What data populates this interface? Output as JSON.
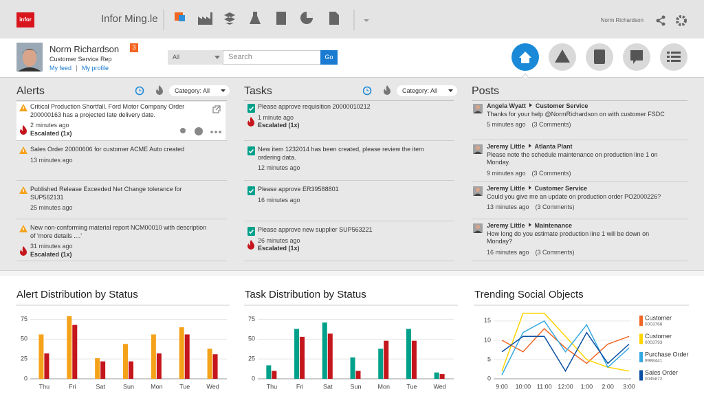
{
  "topbar": {
    "logo": "infor",
    "app": "Infor Ming.le",
    "user": "Norm Richardson"
  },
  "profile": {
    "name": "Norm Richardson",
    "badge": "3",
    "role": "Customer Service Rep",
    "links": [
      "My feed",
      "My profile"
    ]
  },
  "search": {
    "scope": "All",
    "placeholder": "Search",
    "button": "Go"
  },
  "alerts": {
    "title": "Alerts",
    "filter": "Category: All",
    "items": [
      {
        "text": "Critical Production Shortfall. Ford Motor Company Order 200000163 has a projected late delivery date.",
        "time": "2 minutes ago",
        "escalated": "Escalated (1x)"
      },
      {
        "text": "Sales Order 20000606 for customer ACME Auto created",
        "time": "13 minutes ago"
      },
      {
        "text": "Published Release Exceeded Net Change tolerance for SUP562131",
        "time": "25 minutes ago"
      },
      {
        "text": "New non-conforming material report NCM00010 with description of 'more details ....'",
        "time": "31 minutes ago",
        "escalated": "Escalated (1x)"
      }
    ]
  },
  "tasks": {
    "title": "Tasks",
    "filter": "Category: All",
    "items": [
      {
        "text": "Please approve requisition 20000010212",
        "time": "1 minute ago",
        "escalated": "Escalated (1x)"
      },
      {
        "text": "New item 1232014 has been created, please review the item ordering data.",
        "time": "12 minutes ago"
      },
      {
        "text": "Please approve ER39588801",
        "time": "16 minutes ago"
      },
      {
        "text": "Please approve new supplier SUP563221",
        "time": "26 minutes ago",
        "escalated": "Escalated (1x)"
      }
    ]
  },
  "posts": {
    "title": "Posts",
    "items": [
      {
        "author": "Angela Wyatt",
        "target": "Customer Service",
        "text": "Thanks for your help @NormRichardson on with customer FSDC",
        "time": "5 minutes ago",
        "comments": "(3 Comments)"
      },
      {
        "author": "Jeremy Little",
        "target": "Atlanta Plant",
        "text": "Please note the schedule maintenance on production line 1 on Monday.",
        "time": "9 minutes ago",
        "comments": "(3 Comments)"
      },
      {
        "author": "Jeremy Little",
        "target": "Customer Service",
        "text": "Could you give me an update on production order PO2000226?",
        "time": "13 minutes ago",
        "comments": "(3 Comments)"
      },
      {
        "author": "Jeremy Little",
        "target": "Maintenance",
        "text": "How long do you estimate production line 1 will be down on Monday?",
        "time": "16 minutes ago",
        "comments": "(3 Comments)"
      }
    ]
  },
  "charts": [
    {
      "type": "bar",
      "title": "Alert Distribution by Status",
      "categories": [
        "Thu",
        "Fri",
        "Sat",
        "Sun",
        "Mon",
        "Tue",
        "Wed"
      ],
      "series": [
        {
          "color": "#f5a21b",
          "values": [
            56,
            79,
            26,
            44,
            56,
            65,
            38
          ]
        },
        {
          "color": "#c4161c",
          "values": [
            32,
            68,
            22,
            22,
            32,
            56,
            31
          ]
        }
      ],
      "ylim": [
        0,
        85
      ],
      "yticks": [
        0,
        25,
        50,
        75
      ],
      "grid": true
    },
    {
      "type": "bar",
      "title": "Task Distribution by Status",
      "categories": [
        "Thu",
        "Fri",
        "Sat",
        "Sun",
        "Mon",
        "Tue",
        "Wed"
      ],
      "series": [
        {
          "color": "#00a08a",
          "values": [
            17,
            63,
            71,
            27,
            38,
            63,
            8
          ]
        },
        {
          "color": "#c4161c",
          "values": [
            10,
            53,
            57,
            10,
            48,
            48,
            6
          ]
        }
      ],
      "ylim": [
        0,
        85
      ],
      "yticks": [
        0,
        25,
        50,
        75
      ],
      "grid": true
    },
    {
      "type": "line",
      "title": "Trending Social Objects",
      "categories": [
        "9:00",
        "10:00",
        "11:00",
        "12:00",
        "1:00",
        "2:00",
        "3:00"
      ],
      "series": [
        {
          "name": "Customer",
          "id": "0003768",
          "color": "#f26522",
          "values": [
            10,
            7,
            13,
            8,
            4,
            9,
            11
          ]
        },
        {
          "name": "Customer",
          "id": "0003793",
          "color": "#ffd400",
          "values": [
            2,
            17,
            17,
            11,
            5,
            3,
            2
          ]
        },
        {
          "name": "Purchase Order",
          "id": "9988441",
          "color": "#36a9e1",
          "values": [
            1,
            12,
            15,
            7,
            14,
            3,
            8
          ]
        },
        {
          "name": "Sales Order",
          "id": "0045872",
          "color": "#0a4fa3",
          "values": [
            7,
            11,
            11,
            2,
            12,
            4,
            9
          ]
        }
      ],
      "ylim": [
        0,
        18
      ],
      "yticks": [
        0,
        5,
        10,
        15
      ],
      "grid": true
    }
  ]
}
